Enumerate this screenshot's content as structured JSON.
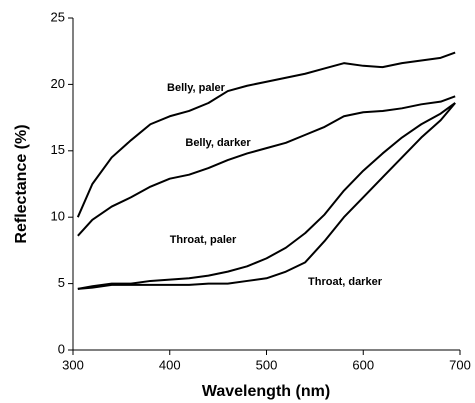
{
  "chart_data": {
    "type": "line",
    "xlabel": "Wavelength (nm)",
    "ylabel": "Reflectance (%)",
    "x": [
      305,
      320,
      340,
      360,
      380,
      400,
      420,
      440,
      460,
      480,
      500,
      520,
      540,
      560,
      580,
      600,
      620,
      640,
      660,
      680,
      695
    ],
    "series": [
      {
        "name": "Belly, paler",
        "color": "#000000",
        "values": [
          10,
          12.5,
          14.5,
          15.8,
          17,
          17.6,
          18,
          18.6,
          19.5,
          19.9,
          20.2,
          20.5,
          20.8,
          21.2,
          21.6,
          21.4,
          21.3,
          21.6,
          21.8,
          22,
          22.4
        ]
      },
      {
        "name": "Belly, darker",
        "color": "#000000",
        "values": [
          8.6,
          9.8,
          10.8,
          11.5,
          12.3,
          12.9,
          13.2,
          13.7,
          14.3,
          14.8,
          15.2,
          15.6,
          16.2,
          16.8,
          17.6,
          17.9,
          18,
          18.2,
          18.5,
          18.7,
          19.1
        ]
      },
      {
        "name": "Throat, paler",
        "color": "#000000",
        "values": [
          4.6,
          4.8,
          5,
          5,
          5.2,
          5.3,
          5.4,
          5.6,
          5.9,
          6.3,
          6.9,
          7.7,
          8.8,
          10.2,
          12,
          13.5,
          14.8,
          16,
          17,
          17.8,
          18.6
        ]
      },
      {
        "name": "Throat, darker",
        "color": "#000000",
        "values": [
          4.6,
          4.7,
          4.9,
          4.9,
          4.9,
          4.9,
          4.9,
          5,
          5,
          5.2,
          5.4,
          5.9,
          6.6,
          8.2,
          10,
          11.5,
          13,
          14.5,
          16,
          17.3,
          18.6
        ]
      }
    ],
    "xlim": [
      300,
      700
    ],
    "xticks": [
      300,
      400,
      500,
      600,
      700
    ],
    "ylim": [
      0,
      25
    ],
    "yticks": [
      0,
      5,
      10,
      15,
      20,
      25
    ],
    "grid": false
  }
}
